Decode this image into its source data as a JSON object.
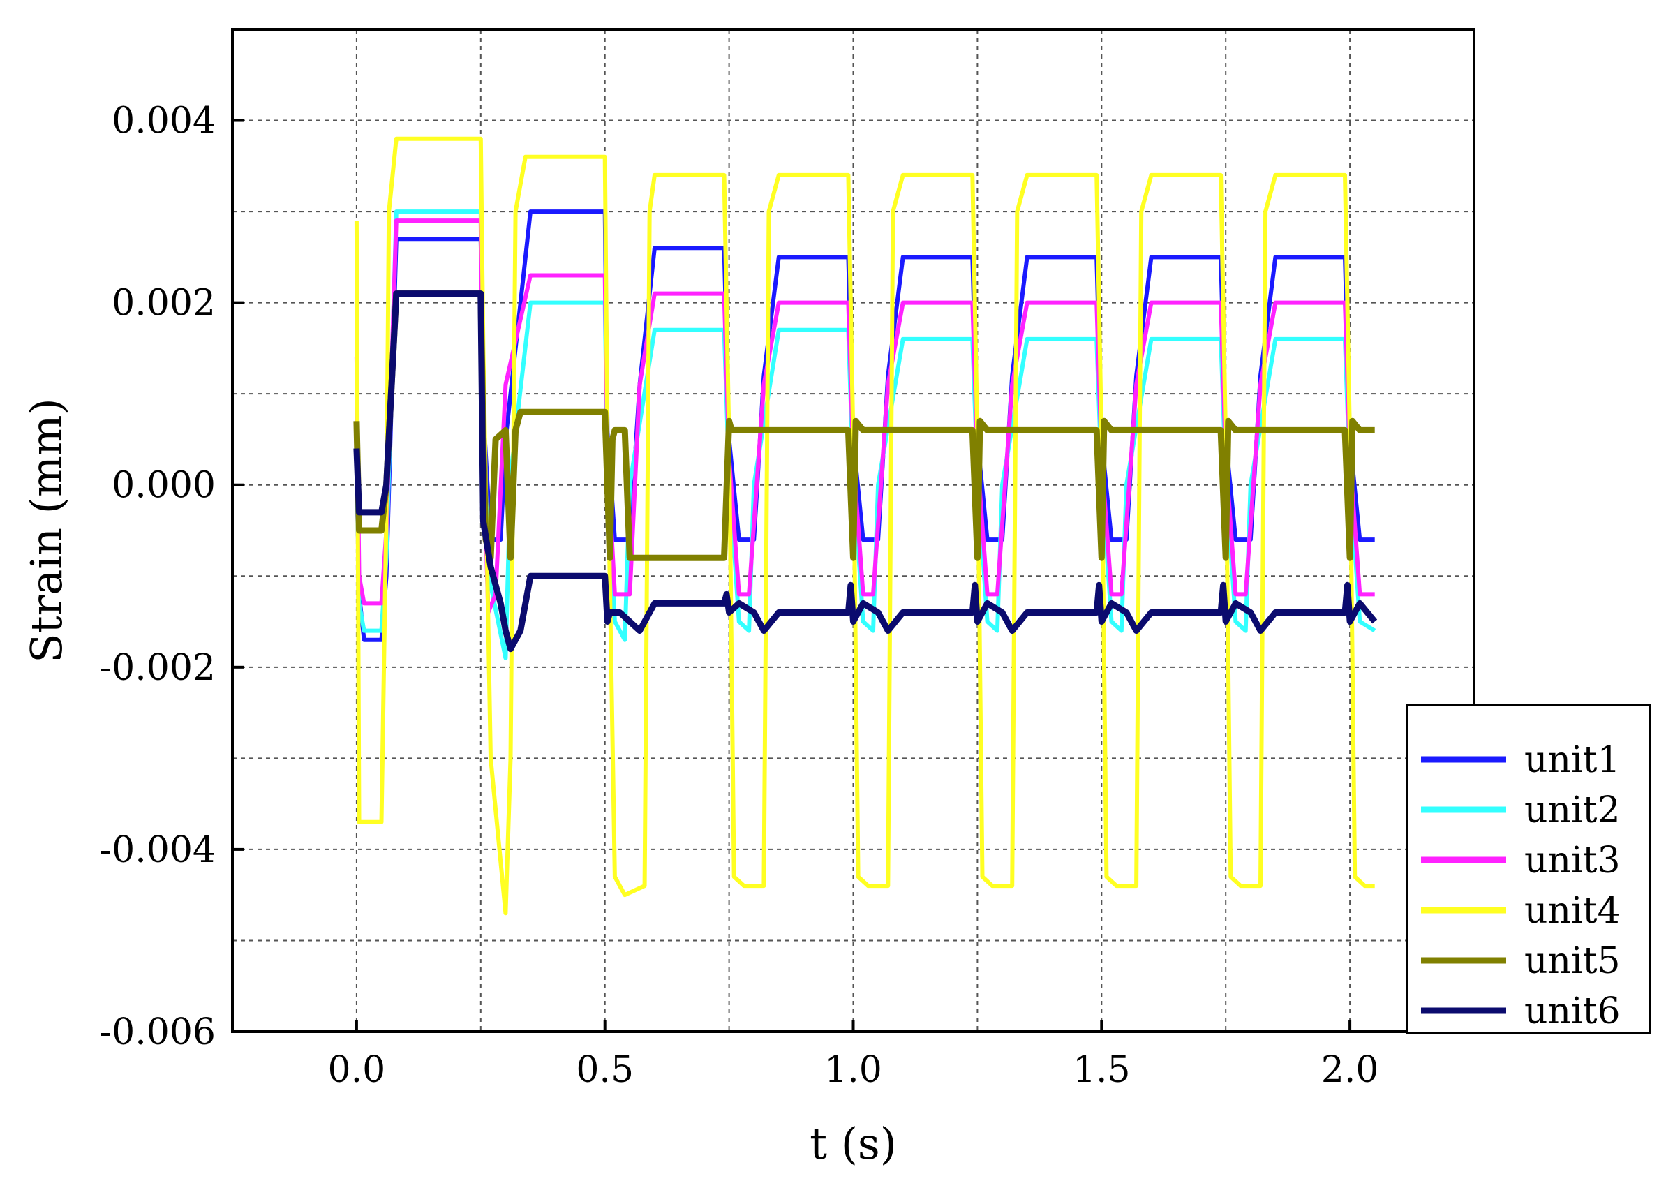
{
  "chart_data": {
    "type": "line",
    "xlabel": "t (s)",
    "ylabel": "Strain (mm)",
    "xlim": [
      -0.25,
      2.25
    ],
    "ylim": [
      -0.006,
      0.005
    ],
    "x_ticks": [
      {
        "value": 0.0,
        "label": "0.0"
      },
      {
        "value": 0.5,
        "label": "0.5"
      },
      {
        "value": 1.0,
        "label": "1.0"
      },
      {
        "value": 1.5,
        "label": "1.5"
      },
      {
        "value": 2.0,
        "label": "2.0"
      }
    ],
    "y_ticks": [
      {
        "value": 0.004,
        "label": "0.004"
      },
      {
        "value": 0.002,
        "label": "0.002"
      },
      {
        "value": 0.0,
        "label": "0.000"
      },
      {
        "value": -0.002,
        "label": "-0.002"
      },
      {
        "value": -0.004,
        "label": "-0.004"
      },
      {
        "value": -0.006,
        "label": "-0.006"
      }
    ],
    "grid": true,
    "legend_position": "bottom-right",
    "series": [
      {
        "name": "unit1",
        "color": "#1a1aff",
        "x": [
          0.0,
          0.005,
          0.015,
          0.05,
          0.06,
          0.08,
          0.25,
          0.255,
          0.27,
          0.29,
          0.3,
          0.35,
          0.5,
          0.505,
          0.52,
          0.55,
          0.57,
          0.6,
          0.74,
          0.75,
          0.77,
          0.8,
          0.82,
          0.85,
          0.99,
          1.0,
          1.02,
          1.05,
          1.07,
          1.1,
          1.24,
          1.25,
          1.27,
          1.3,
          1.32,
          1.35,
          1.49,
          1.5,
          1.52,
          1.55,
          1.57,
          1.6,
          1.74,
          1.75,
          1.77,
          1.8,
          1.82,
          1.85,
          1.99,
          2.0,
          2.02,
          2.05
        ],
        "y": [
          0.0002,
          -0.0012,
          -0.0017,
          -0.0017,
          -0.001,
          0.0027,
          0.0027,
          0.0008,
          -0.0006,
          -0.0006,
          0.0005,
          0.003,
          0.003,
          0.0006,
          -0.0006,
          -0.0006,
          0.0011,
          0.0026,
          0.0026,
          0.0005,
          -0.0006,
          -0.0006,
          0.0012,
          0.0025,
          0.0025,
          0.0005,
          -0.0006,
          -0.0006,
          0.0012,
          0.0025,
          0.0025,
          0.0005,
          -0.0006,
          -0.0006,
          0.0012,
          0.0025,
          0.0025,
          0.0005,
          -0.0006,
          -0.0006,
          0.0012,
          0.0025,
          0.0025,
          0.0005,
          -0.0006,
          -0.0006,
          0.0012,
          0.0025,
          0.0025,
          0.0005,
          -0.0006,
          -0.0006
        ]
      },
      {
        "name": "unit2",
        "color": "#33ffff",
        "x": [
          0.0,
          0.005,
          0.015,
          0.05,
          0.06,
          0.08,
          0.25,
          0.255,
          0.27,
          0.3,
          0.31,
          0.35,
          0.5,
          0.505,
          0.52,
          0.54,
          0.55,
          0.6,
          0.74,
          0.75,
          0.77,
          0.79,
          0.8,
          0.85,
          0.99,
          1.0,
          1.02,
          1.04,
          1.05,
          1.1,
          1.24,
          1.25,
          1.27,
          1.29,
          1.3,
          1.35,
          1.49,
          1.5,
          1.52,
          1.54,
          1.55,
          1.6,
          1.74,
          1.75,
          1.77,
          1.79,
          1.8,
          1.85,
          1.99,
          2.0,
          2.02,
          2.05
        ],
        "y": [
          0.0004,
          -0.0013,
          -0.0016,
          -0.0016,
          -0.0008,
          0.003,
          0.003,
          0.0004,
          -0.0011,
          -0.0019,
          0.0001,
          0.002,
          0.002,
          0.0002,
          -0.0015,
          -0.0017,
          0.0,
          0.0017,
          0.0017,
          0.0001,
          -0.0015,
          -0.0016,
          0.0,
          0.0017,
          0.0017,
          0.0001,
          -0.0015,
          -0.0016,
          0.0,
          0.0016,
          0.0016,
          0.0001,
          -0.0015,
          -0.0016,
          0.0,
          0.0016,
          0.0016,
          0.0001,
          -0.0015,
          -0.0016,
          0.0,
          0.0016,
          0.0016,
          0.0001,
          -0.0015,
          -0.0016,
          0.0,
          0.0016,
          0.0016,
          0.0001,
          -0.0015,
          -0.0016
        ]
      },
      {
        "name": "unit3",
        "color": "#ff22ff",
        "x": [
          0.0,
          0.005,
          0.015,
          0.05,
          0.06,
          0.08,
          0.25,
          0.255,
          0.265,
          0.28,
          0.3,
          0.35,
          0.5,
          0.505,
          0.52,
          0.55,
          0.57,
          0.6,
          0.74,
          0.75,
          0.77,
          0.79,
          0.82,
          0.85,
          0.99,
          1.0,
          1.02,
          1.04,
          1.07,
          1.1,
          1.24,
          1.25,
          1.27,
          1.29,
          1.32,
          1.35,
          1.49,
          1.5,
          1.52,
          1.54,
          1.57,
          1.6,
          1.74,
          1.75,
          1.77,
          1.79,
          1.82,
          1.85,
          1.99,
          2.0,
          2.02,
          2.05
        ],
        "y": [
          0.0014,
          -0.001,
          -0.0013,
          -0.0013,
          -0.0005,
          0.0029,
          0.0029,
          0.0005,
          -0.0014,
          -0.0012,
          0.0011,
          0.0023,
          0.0023,
          0.0003,
          -0.0012,
          -0.0012,
          0.0011,
          0.0021,
          0.0021,
          0.0003,
          -0.0012,
          -0.0012,
          0.0011,
          0.002,
          0.002,
          0.0003,
          -0.0012,
          -0.0012,
          0.0011,
          0.002,
          0.002,
          0.0003,
          -0.0012,
          -0.0012,
          0.0011,
          0.002,
          0.002,
          0.0003,
          -0.0012,
          -0.0012,
          0.0011,
          0.002,
          0.002,
          0.0003,
          -0.0012,
          -0.0012,
          0.0011,
          0.002,
          0.002,
          0.0003,
          -0.0012,
          -0.0012
        ]
      },
      {
        "name": "unit4",
        "color": "#ffff22",
        "x": [
          0.0,
          0.005,
          0.05,
          0.06,
          0.065,
          0.08,
          0.25,
          0.255,
          0.27,
          0.3,
          0.31,
          0.32,
          0.34,
          0.5,
          0.505,
          0.52,
          0.54,
          0.58,
          0.59,
          0.6,
          0.74,
          0.75,
          0.76,
          0.78,
          0.82,
          0.83,
          0.85,
          0.99,
          1.0,
          1.01,
          1.03,
          1.07,
          1.08,
          1.1,
          1.24,
          1.25,
          1.26,
          1.28,
          1.32,
          1.33,
          1.35,
          1.49,
          1.5,
          1.51,
          1.53,
          1.57,
          1.58,
          1.6,
          1.74,
          1.75,
          1.76,
          1.78,
          1.82,
          1.83,
          1.85,
          1.99,
          2.0,
          2.01,
          2.03,
          2.05
        ],
        "y": [
          0.0029,
          -0.0037,
          -0.0037,
          -0.0003,
          0.003,
          0.0038,
          0.0038,
          0.0015,
          -0.003,
          -0.0047,
          -0.003,
          0.003,
          0.0036,
          0.0036,
          0.0005,
          -0.0043,
          -0.0045,
          -0.0044,
          0.003,
          0.0034,
          0.0034,
          0.0005,
          -0.0043,
          -0.0044,
          -0.0044,
          0.003,
          0.0034,
          0.0034,
          0.0005,
          -0.0043,
          -0.0044,
          -0.0044,
          0.003,
          0.0034,
          0.0034,
          0.0005,
          -0.0043,
          -0.0044,
          -0.0044,
          0.003,
          0.0034,
          0.0034,
          0.0005,
          -0.0043,
          -0.0044,
          -0.0044,
          0.003,
          0.0034,
          0.0034,
          0.0005,
          -0.0043,
          -0.0044,
          -0.0044,
          0.003,
          0.0034,
          0.0034,
          0.0005,
          -0.0043,
          -0.0044,
          -0.0044
        ]
      },
      {
        "name": "unit5",
        "color": "#808000",
        "x": [
          0.0,
          0.005,
          0.01,
          0.05,
          0.06,
          0.08,
          0.25,
          0.255,
          0.26,
          0.27,
          0.28,
          0.3,
          0.31,
          0.32,
          0.33,
          0.35,
          0.5,
          0.51,
          0.515,
          0.52,
          0.54,
          0.55,
          0.74,
          0.75,
          0.755,
          0.77,
          0.99,
          1.0,
          1.005,
          1.02,
          1.24,
          1.25,
          1.255,
          1.27,
          1.49,
          1.5,
          1.505,
          1.52,
          1.74,
          1.75,
          1.755,
          1.77,
          1.99,
          2.0,
          2.005,
          2.02,
          2.05
        ],
        "y": [
          0.0007,
          -0.0005,
          -0.0005,
          -0.0005,
          0.0,
          0.0021,
          0.0021,
          0.0005,
          -0.0006,
          -0.0008,
          0.0005,
          0.0006,
          -0.0008,
          0.0006,
          0.0008,
          0.0008,
          0.0008,
          -0.0008,
          0.0005,
          0.0006,
          0.0006,
          -0.0008,
          -0.0008,
          0.0007,
          0.0006,
          0.0006,
          0.0006,
          -0.0008,
          0.0007,
          0.0006,
          0.0006,
          -0.0008,
          0.0007,
          0.0006,
          0.0006,
          -0.0008,
          0.0007,
          0.0006,
          0.0006,
          -0.0008,
          0.0007,
          0.0006,
          0.0006,
          -0.0008,
          0.0007,
          0.0006,
          0.0006
        ]
      },
      {
        "name": "unit6",
        "color": "#0b0b6e",
        "x": [
          0.0,
          0.005,
          0.01,
          0.05,
          0.06,
          0.08,
          0.25,
          0.255,
          0.27,
          0.29,
          0.3,
          0.31,
          0.33,
          0.35,
          0.5,
          0.505,
          0.51,
          0.53,
          0.55,
          0.57,
          0.6,
          0.74,
          0.745,
          0.75,
          0.77,
          0.8,
          0.82,
          0.85,
          0.99,
          0.995,
          1.0,
          1.02,
          1.05,
          1.07,
          1.1,
          1.24,
          1.245,
          1.25,
          1.27,
          1.3,
          1.32,
          1.35,
          1.49,
          1.495,
          1.5,
          1.52,
          1.55,
          1.57,
          1.6,
          1.74,
          1.745,
          1.75,
          1.77,
          1.8,
          1.82,
          1.85,
          1.99,
          1.995,
          2.0,
          2.02,
          2.05
        ],
        "y": [
          0.0004,
          -0.0003,
          -0.0003,
          -0.0003,
          0.0,
          0.0021,
          0.0021,
          -0.0004,
          -0.0009,
          -0.0013,
          -0.0016,
          -0.0018,
          -0.0016,
          -0.001,
          -0.001,
          -0.0015,
          -0.0014,
          -0.0014,
          -0.0015,
          -0.0016,
          -0.0013,
          -0.0013,
          -0.0012,
          -0.0014,
          -0.0013,
          -0.0014,
          -0.0016,
          -0.0014,
          -0.0014,
          -0.0011,
          -0.0015,
          -0.0013,
          -0.0014,
          -0.0016,
          -0.0014,
          -0.0014,
          -0.0011,
          -0.0015,
          -0.0013,
          -0.0014,
          -0.0016,
          -0.0014,
          -0.0014,
          -0.0011,
          -0.0015,
          -0.0013,
          -0.0014,
          -0.0016,
          -0.0014,
          -0.0014,
          -0.0011,
          -0.0015,
          -0.0013,
          -0.0014,
          -0.0016,
          -0.0014,
          -0.0014,
          -0.0011,
          -0.0015,
          -0.0013,
          -0.0015
        ]
      }
    ]
  }
}
